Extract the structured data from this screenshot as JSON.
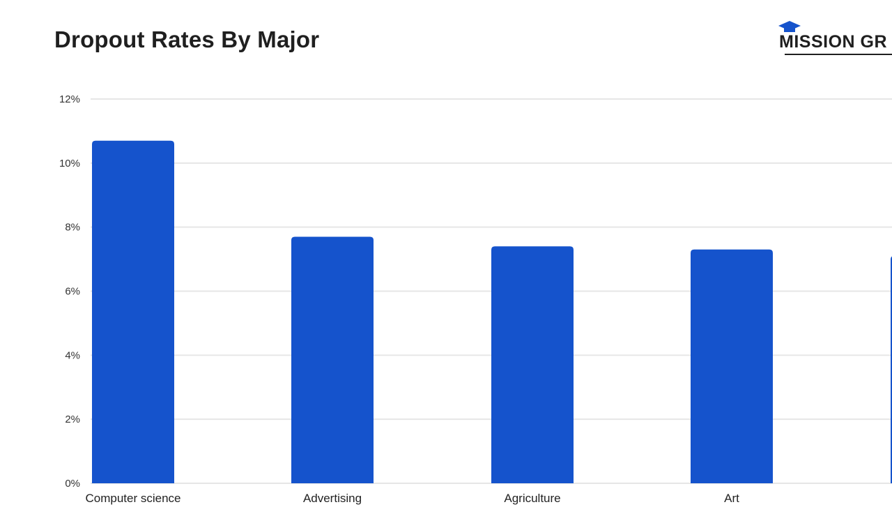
{
  "logo": {
    "text": "MISSION GR"
  },
  "chart_data": {
    "type": "bar",
    "title": "Dropout Rates By Major",
    "categories": [
      "Computer science",
      "Advertising",
      "Agriculture",
      "Art",
      ""
    ],
    "values": [
      10.7,
      7.7,
      7.4,
      7.3,
      7.1
    ],
    "ylim": [
      0,
      12
    ],
    "yticks": [
      "0%",
      "2%",
      "4%",
      "6%",
      "8%",
      "10%",
      "12%"
    ],
    "ytick_values": [
      0,
      2,
      4,
      6,
      8,
      10,
      12
    ],
    "xlabel": "",
    "ylabel": "",
    "grid": true,
    "bar_color": "#1553cc",
    "grid_color": "#e6e6e6"
  }
}
